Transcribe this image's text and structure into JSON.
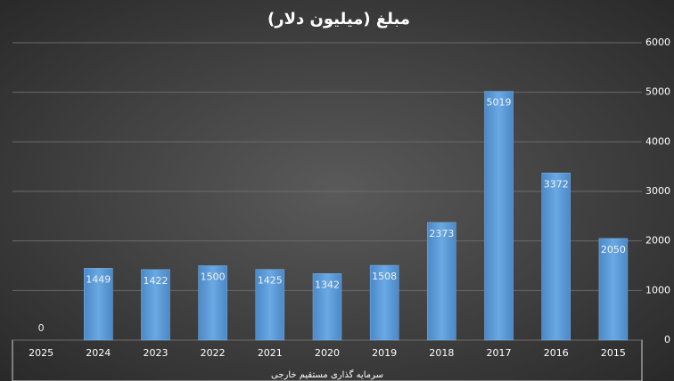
{
  "chart_data": {
    "type": "bar",
    "title": "مبلغ (میلیون دلار)",
    "x_label": "سرمایه گذاری مستقیم خارجی",
    "categories": [
      "2025",
      "2024",
      "2023",
      "2022",
      "2021",
      "2020",
      "2019",
      "2018",
      "2017",
      "2016",
      "2015"
    ],
    "values": [
      0,
      1449,
      1422,
      1500,
      1425,
      1342,
      1508,
      2373,
      5019,
      3372,
      2050
    ],
    "color": "#5b9bd5",
    "ylim": [
      0,
      6000
    ],
    "yticks": [
      0,
      1000,
      2000,
      3000,
      4000,
      5000,
      6000
    ],
    "grid": true
  }
}
